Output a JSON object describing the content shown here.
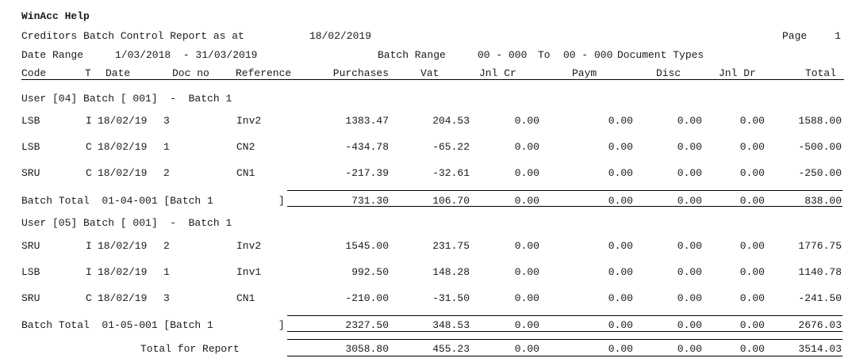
{
  "app_title": "WinAcc Help",
  "header": {
    "report_title": "Creditors Batch Control Report as at",
    "report_date": "18/02/2019",
    "page_label": "Page",
    "page_number": "1",
    "date_range_label": "Date Range",
    "date_range_value": "1/03/2018  - 31/03/2019",
    "batch_range_label": "Batch Range",
    "batch_range_from": "00 - 000",
    "batch_range_to_label": "To",
    "batch_range_to": "00 - 000",
    "document_types_label": "Document Types"
  },
  "columns": {
    "code": "Code",
    "type": "T",
    "date": "Date",
    "doc_no": "Doc no",
    "reference": "Reference",
    "purchases": "Purchases",
    "vat": "Vat",
    "jnl_cr": "Jnl Cr",
    "paym": "Paym",
    "disc": "Disc",
    "jnl_dr": "Jnl Dr",
    "total": "Total"
  },
  "batches": [
    {
      "heading": "User [04] Batch [ 001]  -  Batch 1",
      "rows": [
        {
          "code": "LSB",
          "type": "I",
          "date": "18/02/19",
          "doc_no": "3",
          "reference": "Inv2",
          "purchases": "1383.47",
          "vat": "204.53",
          "jnl_cr": "0.00",
          "paym": "0.00",
          "disc": "0.00",
          "jnl_dr": "0.00",
          "total": "1588.00"
        },
        {
          "code": "LSB",
          "type": "C",
          "date": "18/02/19",
          "doc_no": "1",
          "reference": "CN2",
          "purchases": "-434.78",
          "vat": "-65.22",
          "jnl_cr": "0.00",
          "paym": "0.00",
          "disc": "0.00",
          "jnl_dr": "0.00",
          "total": "-500.00"
        },
        {
          "code": "SRU",
          "type": "C",
          "date": "18/02/19",
          "doc_no": "2",
          "reference": "CN1",
          "purchases": "-217.39",
          "vat": "-32.61",
          "jnl_cr": "0.00",
          "paym": "0.00",
          "disc": "0.00",
          "jnl_dr": "0.00",
          "total": "-250.00"
        }
      ],
      "total_label": "Batch Total  01-04-001 [Batch 1",
      "total_bracket": "]",
      "totals": {
        "purchases": "731.30",
        "vat": "106.70",
        "jnl_cr": "0.00",
        "paym": "0.00",
        "disc": "0.00",
        "jnl_dr": "0.00",
        "total": "838.00"
      }
    },
    {
      "heading": "User [05] Batch [ 001]  -  Batch 1",
      "rows": [
        {
          "code": "SRU",
          "type": "I",
          "date": "18/02/19",
          "doc_no": "2",
          "reference": "Inv2",
          "purchases": "1545.00",
          "vat": "231.75",
          "jnl_cr": "0.00",
          "paym": "0.00",
          "disc": "0.00",
          "jnl_dr": "0.00",
          "total": "1776.75"
        },
        {
          "code": "LSB",
          "type": "I",
          "date": "18/02/19",
          "doc_no": "1",
          "reference": "Inv1",
          "purchases": "992.50",
          "vat": "148.28",
          "jnl_cr": "0.00",
          "paym": "0.00",
          "disc": "0.00",
          "jnl_dr": "0.00",
          "total": "1140.78"
        },
        {
          "code": "SRU",
          "type": "C",
          "date": "18/02/19",
          "doc_no": "3",
          "reference": "CN1",
          "purchases": "-210.00",
          "vat": "-31.50",
          "jnl_cr": "0.00",
          "paym": "0.00",
          "disc": "0.00",
          "jnl_dr": "0.00",
          "total": "-241.50"
        }
      ],
      "total_label": "Batch Total  01-05-001 [Batch 1",
      "total_bracket": "]",
      "totals": {
        "purchases": "2327.50",
        "vat": "348.53",
        "jnl_cr": "0.00",
        "paym": "0.00",
        "disc": "0.00",
        "jnl_dr": "0.00",
        "total": "2676.03"
      }
    }
  ],
  "report_total": {
    "label": "Total for Report",
    "totals": {
      "purchases": "3058.80",
      "vat": "455.23",
      "jnl_cr": "0.00",
      "paym": "0.00",
      "disc": "0.00",
      "jnl_dr": "0.00",
      "total": "3514.03"
    }
  }
}
